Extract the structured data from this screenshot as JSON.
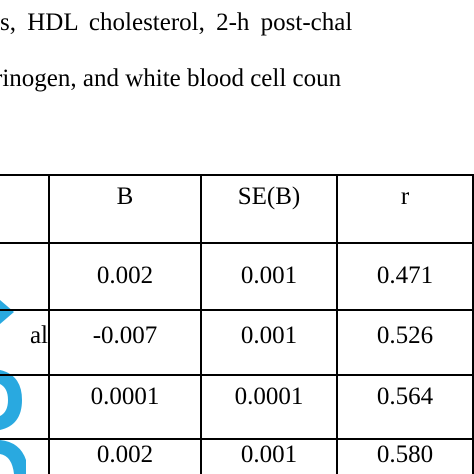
{
  "intro": {
    "line1": "s, HDL cholesterol, 2-h post-chal",
    "line2": "rinogen, and white blood cell coun"
  },
  "table": {
    "headers": [
      "",
      "B",
      "SE(B)",
      "r"
    ],
    "rows": [
      {
        "label": "",
        "b": "0.002",
        "se": "0.001",
        "r": "0.471"
      },
      {
        "label": "al",
        "b": "-0.007",
        "se": "0.001",
        "r": "0.526"
      },
      {
        "label": "",
        "b": "0.0001",
        "se": "0.0001",
        "r": "0.564"
      },
      {
        "label": "",
        "b": "0.002",
        "se": "0.001",
        "r": "0.580"
      }
    ]
  },
  "watermark_color": "#29a9e0"
}
